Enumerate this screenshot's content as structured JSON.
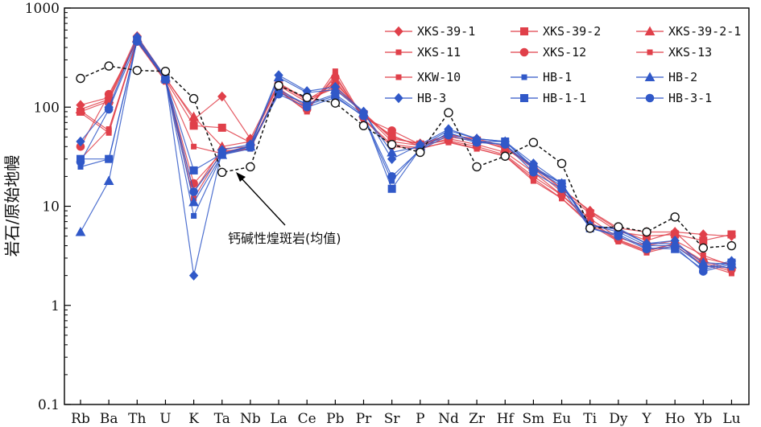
{
  "chart_data": {
    "type": "line",
    "title": "",
    "xlabel": "",
    "ylabel": "岩石/原始地幔",
    "yscale": "log",
    "ylim": [
      0.1,
      1000
    ],
    "yticks": [
      "0.1",
      "1",
      "10",
      "100",
      "1000"
    ],
    "categories": [
      "Rb",
      "Ba",
      "Th",
      "U",
      "K",
      "Ta",
      "Nb",
      "La",
      "Ce",
      "Pb",
      "Pr",
      "Sr",
      "P",
      "Nd",
      "Zr",
      "Hf",
      "Sm",
      "Eu",
      "Ti",
      "Dy",
      "Y",
      "Ho",
      "Yb",
      "Lu"
    ],
    "legend_position": "top-right",
    "series": [
      {
        "name": "XKS-39-1",
        "color": "#e0404a",
        "marker": "diamond",
        "values": [
          105,
          125,
          520,
          200,
          75,
          128,
          48,
          175,
          120,
          155,
          88,
          48,
          43,
          52,
          48,
          40,
          25,
          15,
          9,
          6,
          5.5,
          5.5,
          5.2,
          5.0
        ]
      },
      {
        "name": "XKS-39-2",
        "color": "#e0404a",
        "marker": "square",
        "values": [
          90,
          115,
          480,
          190,
          65,
          62,
          44,
          165,
          112,
          165,
          85,
          50,
          42,
          50,
          46,
          39,
          24,
          14,
          8.5,
          5.5,
          5,
          5.2,
          4.5,
          5.2
        ]
      },
      {
        "name": "XKS-39-2-1",
        "color": "#e0404a",
        "marker": "triangle",
        "values": [
          95,
          120,
          500,
          195,
          80,
          40,
          45,
          170,
          118,
          175,
          86,
          45,
          41,
          53,
          47,
          38,
          26,
          15,
          8.8,
          5.8,
          4.5,
          5.5,
          3.0,
          2.6
        ]
      },
      {
        "name": "XKS-11",
        "color": "#e0404a",
        "marker": "smallsquare",
        "values": [
          30,
          60,
          450,
          185,
          40,
          34,
          38,
          155,
          100,
          185,
          80,
          52,
          40,
          48,
          42,
          35,
          22,
          13,
          7.5,
          4.8,
          4,
          4.5,
          3.2,
          2.5
        ]
      },
      {
        "name": "XKS-12",
        "color": "#e0404a",
        "marker": "circle",
        "values": [
          40,
          135,
          460,
          190,
          17,
          35,
          40,
          150,
          95,
          200,
          78,
          58,
          42,
          46,
          40,
          33,
          20,
          13,
          7,
          4.6,
          3.6,
          4.2,
          2.8,
          2.3
        ]
      },
      {
        "name": "XKS-13",
        "color": "#e0404a",
        "marker": "smallsquare",
        "values": [
          88,
          55,
          470,
          180,
          12,
          36,
          38,
          145,
          92,
          210,
          75,
          40,
          38,
          45,
          38,
          32,
          18,
          12,
          6.5,
          4.4,
          3.4,
          4.0,
          2.6,
          2.1
        ]
      },
      {
        "name": "XKW-10",
        "color": "#e0404a",
        "marker": "smallsquare",
        "values": [
          92,
          58,
          480,
          185,
          14,
          38,
          40,
          148,
          90,
          230,
          76,
          42,
          39,
          44,
          38,
          32,
          19,
          12,
          6.8,
          4.5,
          3.5,
          4.2,
          2.7,
          2.2
        ]
      },
      {
        "name": "HB-1",
        "color": "#3058c8",
        "marker": "smallsquare",
        "values": [
          25,
          30,
          470,
          190,
          8,
          33,
          38,
          150,
          105,
          130,
          80,
          18,
          38,
          55,
          45,
          42,
          24,
          16,
          6.5,
          5.5,
          4,
          4.0,
          2.5,
          2.4
        ]
      },
      {
        "name": "HB-2",
        "color": "#3058c8",
        "marker": "triangle",
        "values": [
          5.5,
          18,
          490,
          200,
          11,
          33,
          40,
          200,
          140,
          150,
          88,
          35,
          40,
          58,
          48,
          45,
          25,
          17,
          6.5,
          5.8,
          4.2,
          4.2,
          2.7,
          2.6
        ]
      },
      {
        "name": "HB-3",
        "color": "#3058c8",
        "marker": "diamond",
        "values": [
          45,
          100,
          510,
          200,
          2,
          37,
          42,
          210,
          145,
          160,
          90,
          30,
          42,
          60,
          48,
          45,
          27,
          17,
          6.3,
          6,
          4.2,
          4.5,
          2.4,
          2.8
        ]
      },
      {
        "name": "HB-1-1",
        "color": "#3058c8",
        "marker": "square",
        "values": [
          30,
          30,
          470,
          190,
          23,
          34,
          40,
          140,
          108,
          135,
          84,
          15,
          38,
          55,
          45,
          45,
          24,
          17,
          6.0,
          5.2,
          3.8,
          3.7,
          2.3,
          2.7
        ]
      },
      {
        "name": "HB-3-1",
        "color": "#3058c8",
        "marker": "circle",
        "values": [
          28,
          95,
          460,
          195,
          14,
          34,
          41,
          135,
          100,
          125,
          82,
          20,
          37,
          52,
          44,
          42,
          22,
          15,
          6.0,
          5.0,
          3.7,
          3.9,
          2.2,
          2.6
        ]
      },
      {
        "name": "钙碱性煌斑岩(均值)",
        "color": "#111111",
        "marker": "opencircle",
        "dashed": true,
        "values": [
          195,
          260,
          235,
          230,
          122,
          22,
          25,
          165,
          125,
          110,
          65,
          42,
          35,
          88,
          25,
          32,
          44,
          27,
          6.0,
          6.2,
          5.5,
          7.8,
          3.8,
          4.0
        ]
      }
    ],
    "annotation": {
      "text": "钙碱性煌斑岩(均值)",
      "points_to": "Ta"
    }
  }
}
